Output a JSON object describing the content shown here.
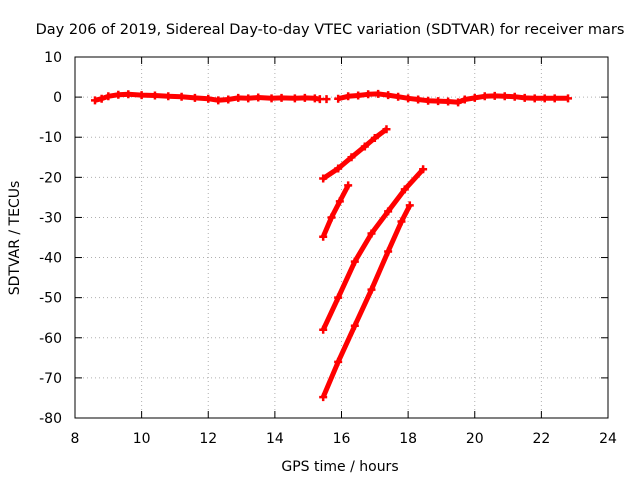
{
  "chart_data": {
    "type": "scatter",
    "title": "Day 206 of 2019, Sidereal Day-to-day VTEC variation (SDTVAR) for receiver mars",
    "xlabel": "GPS time / hours",
    "ylabel": "SDTVAR / TECUs",
    "xlim": [
      8,
      24
    ],
    "ylim": [
      -80,
      10
    ],
    "xticks": [
      8,
      10,
      12,
      14,
      16,
      18,
      20,
      22,
      24
    ],
    "yticks": [
      10,
      0,
      -10,
      -20,
      -30,
      -40,
      -50,
      -60,
      -70,
      -80
    ],
    "grid": true,
    "legend": "none",
    "series": [
      {
        "color": "#ff0000",
        "marker": "plus",
        "segments": [
          [
            [
              8.6,
              -0.8
            ],
            [
              8.8,
              -0.4
            ],
            [
              9.0,
              0.2
            ],
            [
              9.3,
              0.6
            ],
            [
              9.6,
              0.7
            ],
            [
              10.0,
              0.5
            ],
            [
              10.4,
              0.4
            ],
            [
              10.8,
              0.2
            ],
            [
              11.2,
              0.1
            ],
            [
              11.6,
              -0.2
            ],
            [
              12.0,
              -0.4
            ],
            [
              12.3,
              -0.8
            ],
            [
              12.6,
              -0.6
            ],
            [
              12.9,
              -0.2
            ],
            [
              13.2,
              -0.3
            ],
            [
              13.5,
              -0.1
            ],
            [
              13.9,
              -0.3
            ],
            [
              14.2,
              -0.2
            ],
            [
              14.6,
              -0.3
            ],
            [
              14.9,
              -0.2
            ],
            [
              15.2,
              -0.3
            ],
            [
              15.35,
              -0.5
            ]
          ],
          [
            [
              15.55,
              -0.5
            ]
          ],
          [
            [
              15.9,
              -0.4
            ],
            [
              16.2,
              0.2
            ],
            [
              16.5,
              0.4
            ],
            [
              16.8,
              0.7
            ],
            [
              17.1,
              0.8
            ],
            [
              17.4,
              0.5
            ],
            [
              17.7,
              0.1
            ],
            [
              18.0,
              -0.3
            ],
            [
              18.3,
              -0.6
            ],
            [
              18.6,
              -0.9
            ],
            [
              18.9,
              -1.0
            ],
            [
              19.2,
              -1.1
            ],
            [
              19.5,
              -1.3
            ],
            [
              19.7,
              -0.6
            ],
            [
              20.0,
              -0.2
            ],
            [
              20.3,
              0.2
            ],
            [
              20.6,
              0.3
            ],
            [
              20.9,
              0.2
            ],
            [
              21.2,
              0.1
            ],
            [
              21.5,
              -0.2
            ],
            [
              21.8,
              -0.3
            ],
            [
              22.1,
              -0.3
            ],
            [
              22.4,
              -0.3
            ],
            [
              22.8,
              -0.3
            ]
          ],
          [
            [
              15.45,
              -20.3
            ],
            [
              15.9,
              -17.8
            ],
            [
              16.3,
              -15.0
            ],
            [
              16.7,
              -12.3
            ],
            [
              17.0,
              -10.2
            ],
            [
              17.35,
              -8.0
            ]
          ],
          [
            [
              15.45,
              -34.8
            ],
            [
              15.7,
              -30.0
            ],
            [
              15.95,
              -26.0
            ],
            [
              16.2,
              -22.0
            ]
          ],
          [
            [
              15.45,
              -58.0
            ],
            [
              15.9,
              -50.0
            ],
            [
              16.4,
              -41.0
            ],
            [
              16.9,
              -34.0
            ],
            [
              17.4,
              -28.5
            ],
            [
              17.9,
              -23.0
            ],
            [
              18.45,
              -18.0
            ]
          ],
          [
            [
              15.45,
              -74.8
            ],
            [
              15.9,
              -66.0
            ],
            [
              16.4,
              -57.0
            ],
            [
              16.9,
              -48.0
            ],
            [
              17.4,
              -38.5
            ],
            [
              17.8,
              -31.0
            ],
            [
              18.05,
              -27.0
            ]
          ]
        ]
      }
    ]
  }
}
